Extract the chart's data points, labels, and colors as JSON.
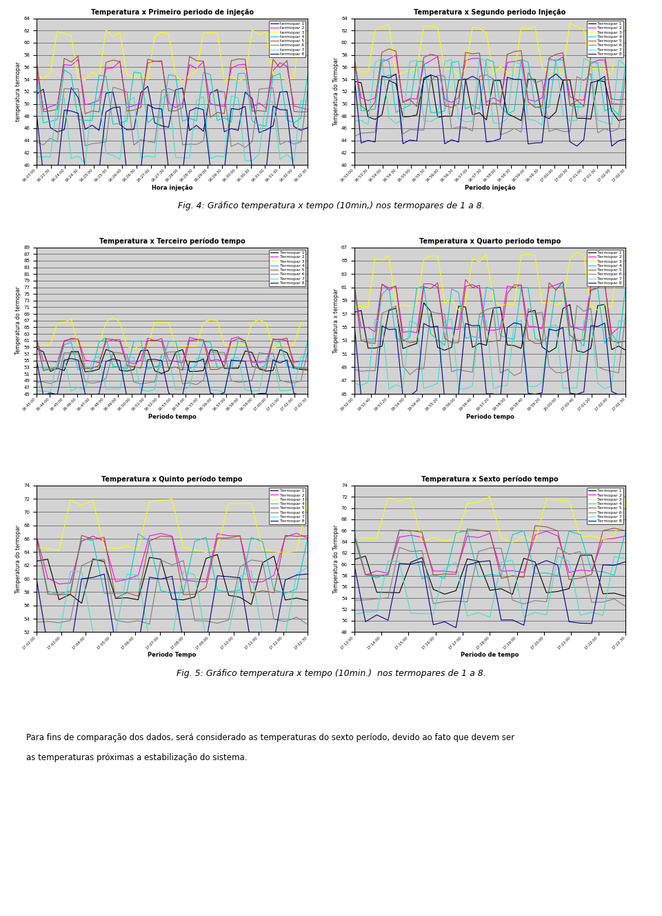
{
  "fig4_caption": "Fig. 4: Gráfico temperatura x tempo (10min,) nos termopares de 1 a 8.",
  "fig5_caption": "Fig. 5: Gráfico temperatura x tempo (10min.)  nos termopares de 1 a 8.",
  "paragraph_line1": "Para fins de comparação dos dados, será considerado as temperaturas do sexto período, devido ao fato que devem ser",
  "paragraph_line2": "as temperaturas próximas a estabilização do sistema.",
  "plot1": {
    "title": "Temperatura x Primeiro periodo de injeção",
    "xlabel": "Hora injeção",
    "ylabel": "temperatura termopar",
    "ylim": [
      40,
      64
    ],
    "yticks": [
      40,
      42,
      44,
      46,
      48,
      50,
      52,
      54,
      56,
      58,
      60,
      62,
      64
    ],
    "xticks": [
      "16:23:00",
      "16:23:30",
      "16:24:00",
      "16:24:30",
      "16:25:00",
      "16:25:30",
      "16:26:00",
      "16:26:30",
      "16:27:00",
      "16:27:30",
      "16:28:00",
      "16:28:30",
      "16:29:00",
      "16:29:30",
      "16:30:00",
      "16:30:30",
      "16:31:00",
      "16:31:30",
      "16:32:00",
      "16:32:30"
    ],
    "legend": [
      "termopar 1",
      "termopar 2",
      "termopar 3",
      "termopar 4",
      "termopar 5",
      "termopar 6",
      "termopar 7",
      "termopar 8"
    ],
    "line_colors": [
      "#00008B",
      "#FF00FF",
      "#FFFF00",
      "#00CED1",
      "#A0522D",
      "#808080",
      "#40E0D0",
      "#000080"
    ],
    "bases": [
      49,
      53,
      58,
      51,
      53,
      48,
      46,
      44
    ],
    "n_pts": 40
  },
  "plot2": {
    "title": "Temperatura x Segundo periodo Injeção",
    "xlabel": "Periodo injeção",
    "ylabel": "Temperatura do Termopar",
    "ylim": [
      40,
      64
    ],
    "yticks": [
      40,
      42,
      44,
      46,
      48,
      50,
      52,
      54,
      56,
      58,
      60,
      62,
      64
    ],
    "xticks": [
      "16:53:00",
      "16:53:30",
      "16:54:00",
      "16:54:30",
      "16:55:00",
      "16:55:30",
      "16:56:00",
      "16:56:30",
      "16:57:00",
      "16:57:30",
      "16:58:00",
      "16:58:30",
      "16:59:00",
      "16:59:30",
      "17:00:00",
      "17:00:30",
      "17:01:00",
      "17:01:30",
      "17:02:00",
      "17:02:30"
    ],
    "legend": [
      "Termopar 1",
      "Termopar 2",
      "Termopar 3",
      "Termopar 4",
      "Termopar 5",
      "Termopar 6",
      "Termopar 7",
      "Termopar 8"
    ],
    "line_colors": [
      "#000000",
      "#FF00FF",
      "#FFFF00",
      "#00CED1",
      "#A0522D",
      "#808080",
      "#40E0D0",
      "#00008B"
    ],
    "bases": [
      51,
      54,
      59,
      53,
      54,
      50,
      52,
      49
    ],
    "n_pts": 40
  },
  "plot3": {
    "title": "Temperatura x Terceiro período tempo",
    "xlabel": "Periodo tempo",
    "ylabel": "Temperatura do termopar",
    "ylim": [
      45,
      89
    ],
    "yticks": [
      45,
      47,
      49,
      51,
      53,
      55,
      57,
      59,
      61,
      63,
      65,
      67,
      69,
      71,
      73,
      75,
      77,
      79,
      81,
      83,
      85,
      87,
      89
    ],
    "xticks": [
      "16:43:00",
      "16:44:00",
      "16:45:00",
      "16:46:00",
      "16:47:00",
      "16:48:00",
      "16:49:00",
      "16:50:00",
      "16:51:00",
      "16:52:00",
      "16:53:00",
      "16:54:00",
      "16:55:00",
      "16:56:00",
      "16:57:00",
      "16:58:00",
      "16:59:00",
      "17:00:00",
      "17:01:00",
      "17:02:00",
      "17:02:30"
    ],
    "legend": [
      "Termopar 1",
      "Termopar 2",
      "Termopar 3",
      "Termopar 4",
      "Termopar 5",
      "Termopar 6",
      "Termopar 7",
      "Termopar 8"
    ],
    "line_colors": [
      "#000000",
      "#FF00FF",
      "#FFFF00",
      "#00CED1",
      "#A0522D",
      "#808080",
      "#40E0D0",
      "#00008B"
    ],
    "bases": [
      55,
      58,
      63,
      57,
      57,
      53,
      51,
      50
    ],
    "n_pts": 40
  },
  "plot4": {
    "title": "Temperatura x Quarto periodo tempo",
    "xlabel": "Periodo tempo",
    "ylabel": "Temperatura x termopar",
    "ylim": [
      45,
      67
    ],
    "yticks": [
      45,
      47,
      49,
      51,
      53,
      55,
      57,
      59,
      61,
      63,
      65,
      67
    ],
    "xticks": [
      "19:52:00",
      "19:52:40",
      "19:53:20",
      "19:54:00",
      "19:54:40",
      "19:55:20",
      "19:56:00",
      "19:56:40",
      "19:57:20",
      "19:58:00",
      "19:58:40",
      "19:59:20",
      "20:00:00",
      "17:00:40",
      "17:01:20",
      "17:02:00",
      "17:02:30"
    ],
    "legend": [
      "Termopar 1",
      "Termopar 2",
      "Termopar 3",
      "Termopar 4",
      "Termopar 5",
      "Termopar 6",
      "Termopar 7",
      "Termopar 8"
    ],
    "line_colors": [
      "#000000",
      "#FF00FF",
      "#FFFF00",
      "#00CED1",
      "#A0522D",
      "#808080",
      "#40E0D0",
      "#00008B"
    ],
    "bases": [
      55,
      58,
      62,
      57,
      57,
      53,
      51,
      50
    ],
    "n_pts": 40
  },
  "plot5": {
    "title": "Temperatura x Quinto período tempo",
    "xlabel": "Periodo Tempo",
    "ylabel": "Temperatura do termopar",
    "ylim": [
      52,
      74
    ],
    "yticks": [
      52,
      54,
      56,
      58,
      60,
      62,
      64,
      66,
      68,
      70,
      72,
      74
    ],
    "xticks": [
      "17:02:00",
      "17:03:00",
      "17:04:00",
      "17:05:00",
      "17:06:00",
      "17:07:00",
      "17:08:00",
      "17:09:00",
      "17:10:00",
      "17:11:00",
      "17:12:00",
      "17:12:30"
    ],
    "legend": [
      "Termopar 1",
      "Termopar 2",
      "Termopar 3",
      "Termopar 4",
      "Termopar 5",
      "Termopar 6",
      "Termopar 7",
      "Termopar 8"
    ],
    "line_colors": [
      "#000000",
      "#FF00FF",
      "#FFFF00",
      "#00CED1",
      "#A0522D",
      "#808080",
      "#40E0D0",
      "#00008B"
    ],
    "bases": [
      60,
      63,
      68,
      62,
      62,
      58,
      56,
      55
    ],
    "n_pts": 25
  },
  "plot6": {
    "title": "Temperatura x Sexto período tempo",
    "xlabel": "Periodo de tempo",
    "ylabel": "Temperatura do Termopar",
    "ylim": [
      48,
      74
    ],
    "yticks": [
      48,
      50,
      52,
      54,
      56,
      58,
      60,
      62,
      64,
      66,
      68,
      70,
      72,
      74
    ],
    "xticks": [
      "17:13:00",
      "17:14:00",
      "17:15:00",
      "17:16:00",
      "17:17:00",
      "17:18:00",
      "17:19:00",
      "17:20:00",
      "17:21:00",
      "17:22:00",
      "17:22:30"
    ],
    "legend": [
      "Termopar 1",
      "Termopar 2",
      "Termopar 3",
      "Termopar 4",
      "Termopar 5",
      "Termopar 6",
      "Termopar 7",
      "Termopar 8"
    ],
    "line_colors": [
      "#000000",
      "#FF00FF",
      "#FFFF00",
      "#00CED1",
      "#A0522D",
      "#808080",
      "#40E0D0",
      "#00008B"
    ],
    "bases": [
      58,
      62,
      68,
      62,
      62,
      58,
      56,
      55
    ],
    "n_pts": 25
  },
  "plot_bg": "#D3D3D3",
  "outer_bg": "#BEBEBE"
}
